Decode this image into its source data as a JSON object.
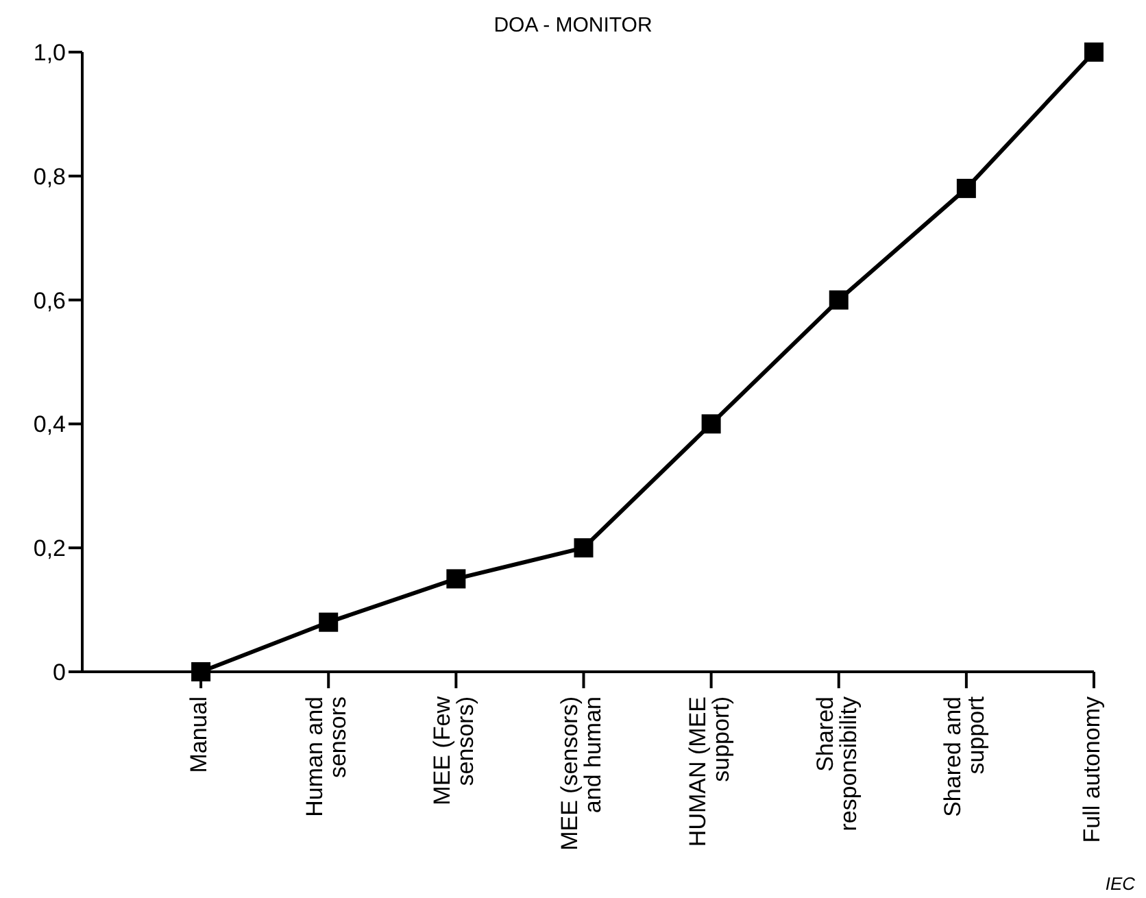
{
  "chart_data": {
    "type": "line",
    "title": "DOA - MONITOR",
    "categories": [
      "Manual",
      "Human and sensors",
      "MEE (Few sensors)",
      "MEE (sensors) and human",
      "HUMAN (MEE support)",
      "Shared responsibility",
      "Shared and support",
      "Full autonomy"
    ],
    "series": [
      {
        "color": "#000000",
        "values": [
          0,
          0.08,
          0.15,
          0.2,
          0.4,
          0.6,
          0.78,
          1.0
        ]
      }
    ],
    "ylim": [
      0,
      1
    ],
    "yticks": [
      {
        "value": 0,
        "label": "0"
      },
      {
        "value": 0.2,
        "label": "0,2"
      },
      {
        "value": 0.4,
        "label": "0,4"
      },
      {
        "value": 0.6,
        "label": "0,6"
      },
      {
        "value": 0.8,
        "label": "0,8"
      },
      {
        "value": 1,
        "label": "1,0"
      }
    ],
    "grid": false,
    "legend": false,
    "marker": "square",
    "line_style": "solid",
    "annotations": [
      "IEC"
    ]
  }
}
